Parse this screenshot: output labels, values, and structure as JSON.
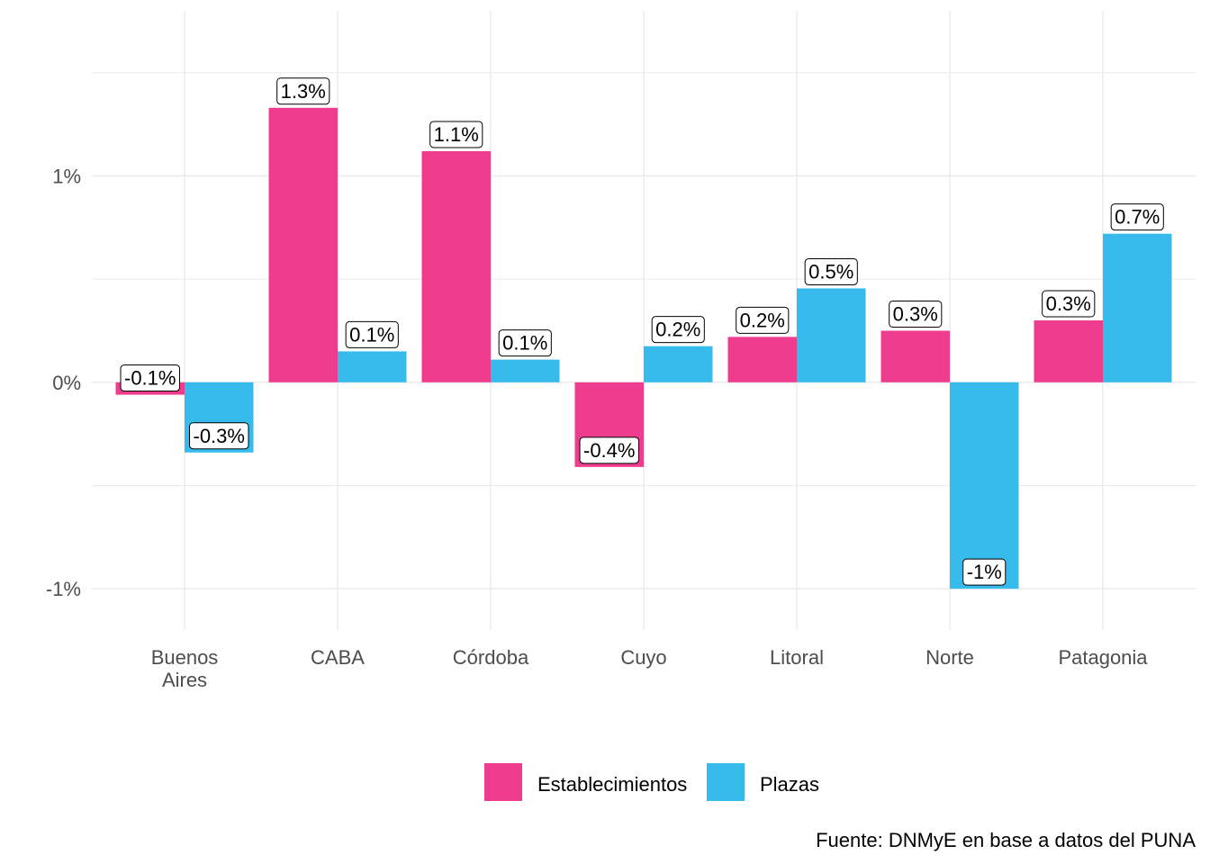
{
  "chart_data": {
    "type": "bar",
    "categories": [
      "Buenos Aires",
      "CABA",
      "Córdoba",
      "Cuyo",
      "Litoral",
      "Norte",
      "Patagonia"
    ],
    "series": [
      {
        "name": "Establecimientos",
        "color": "#ee3d8f",
        "values": [
          -0.06,
          1.33,
          1.12,
          -0.41,
          0.22,
          0.25,
          0.3
        ],
        "value_labels": [
          "-0.1%",
          "1.3%",
          "1.1%",
          "-0.4%",
          "0.2%",
          "0.3%",
          "0.3%"
        ]
      },
      {
        "name": "Plazas",
        "color": "#37bbed",
        "values": [
          -0.34,
          0.15,
          0.11,
          0.175,
          0.455,
          -1.0,
          0.72
        ],
        "value_labels": [
          "-0.3%",
          "0.1%",
          "0.1%",
          "0.2%",
          "0.5%",
          "-1%",
          "0.7%"
        ]
      }
    ],
    "ylim": [
      -1.2,
      1.8
    ],
    "yticks": [
      {
        "value": -1,
        "label": "-1%"
      },
      {
        "value": 0,
        "label": "0%"
      },
      {
        "value": 1,
        "label": "1%"
      }
    ],
    "minor_yticks": [
      -0.5,
      0.5,
      1.5
    ],
    "grid": true,
    "legend": "bottom",
    "caption": "Fuente: DNMyE en base a datos del PUNA"
  }
}
